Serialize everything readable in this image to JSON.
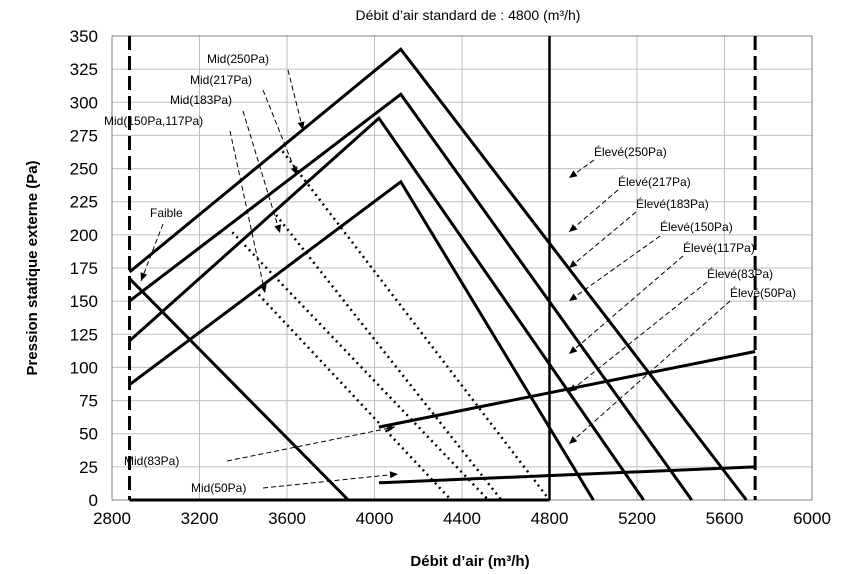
{
  "chart_data": {
    "type": "line",
    "title": "Débit d’air standard de : 4800 (m³/h)",
    "xlabel": "Débit d’air (m³/h)",
    "ylabel": "Pression statique externe (Pa)",
    "xlim": [
      2800,
      6000
    ],
    "ylim": [
      0,
      350
    ],
    "xticks": [
      2800,
      3200,
      3600,
      4000,
      4400,
      4800,
      5200,
      5600,
      6000
    ],
    "yticks": [
      0,
      25,
      50,
      75,
      100,
      125,
      150,
      175,
      200,
      225,
      250,
      275,
      300,
      325,
      350
    ],
    "grid": true,
    "reference_lines": [
      {
        "x": 2880,
        "style": "dashed"
      },
      {
        "x": 5740,
        "style": "dashed"
      },
      {
        "x": 4800,
        "style": "solid"
      }
    ],
    "series": [
      {
        "name": "Élevé(250Pa)",
        "style": "solid",
        "x": [
          2880,
          4120,
          5700
        ],
        "y": [
          172,
          340,
          0
        ]
      },
      {
        "name": "Élevé(217Pa)",
        "style": "solid",
        "x": [
          2880,
          4120,
          5450
        ],
        "y": [
          150,
          306,
          0
        ]
      },
      {
        "name": "Élevé(183Pa)",
        "style": "solid",
        "x": [
          2880,
          4020,
          5230
        ],
        "y": [
          120,
          288,
          0
        ]
      },
      {
        "name": "Élevé(150Pa)",
        "style": "solid",
        "x": [
          2880,
          4120,
          5000
        ],
        "y": [
          87,
          240,
          0
        ]
      },
      {
        "name": "Élevé(117Pa)",
        "style": "solid",
        "x": [
          2880,
          4020,
          4800
        ],
        "y": [
          0,
          0,
          0
        ]
      },
      {
        "name": "Faible",
        "style": "solid",
        "x": [
          2880,
          3880
        ],
        "y": [
          167,
          0
        ]
      },
      {
        "name": "Mid(250Pa)",
        "style": "dotted",
        "x": [
          3580,
          4800
        ],
        "y": [
          263,
          0
        ]
      },
      {
        "name": "Mid(217Pa)",
        "style": "dotted",
        "x": [
          3550,
          4580
        ],
        "y": [
          215,
          0
        ]
      },
      {
        "name": "Mid(183Pa)",
        "style": "dotted",
        "x": [
          3350,
          4520
        ],
        "y": [
          202,
          0
        ]
      },
      {
        "name": "Mid(150Pa,117Pa)",
        "style": "dotted",
        "x": [
          3470,
          4350
        ],
        "y": [
          155,
          0
        ]
      },
      {
        "name": "Mid(83Pa)",
        "style": "solid",
        "x": [
          4020,
          5740
        ],
        "y": [
          55,
          112
        ]
      },
      {
        "name": "Mid(50Pa)",
        "style": "solid",
        "x": [
          4020,
          5740
        ],
        "y": [
          13,
          25
        ]
      }
    ],
    "annotations": [
      "Mid(250Pa)",
      "Mid(217Pa)",
      "Mid(183Pa)",
      "Mid(150Pa,117Pa)",
      "Faible",
      "Mid(83Pa)",
      "Mid(50Pa)",
      "Élevé(250Pa)",
      "Élevé(217Pa)",
      "Élevé(183Pa)",
      "Élevé(150Pa)",
      "Élevé(117Pa)",
      "Élevé(83Pa)",
      "Élevé(50Pa)"
    ]
  }
}
